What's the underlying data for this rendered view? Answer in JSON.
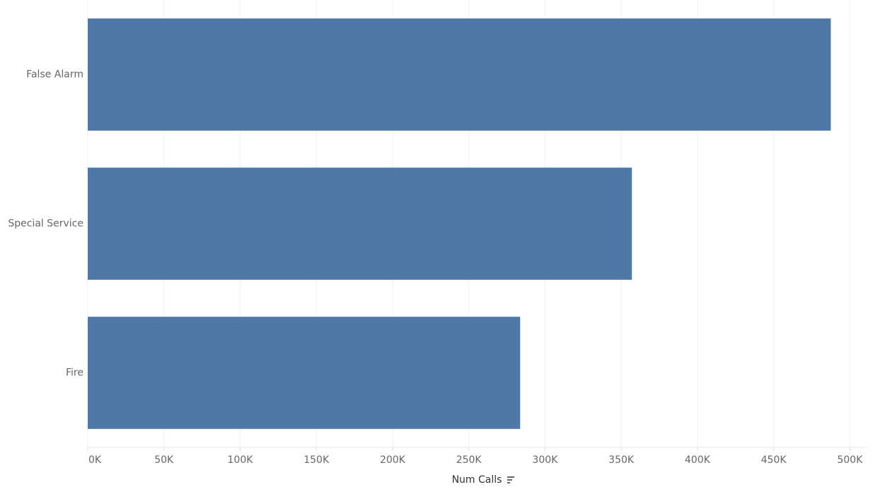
{
  "chart_data": {
    "type": "bar",
    "orientation": "horizontal",
    "x_label": "Num Calls",
    "categories": [
      "False Alarm",
      "Special Service",
      "Fire"
    ],
    "values": [
      487500,
      357000,
      283700
    ],
    "color": "#4e79a7",
    "xlim": [
      0,
      511000
    ],
    "xticks": [
      {
        "value": 0,
        "label": "0K"
      },
      {
        "value": 50000,
        "label": "50K"
      },
      {
        "value": 100000,
        "label": "100K"
      },
      {
        "value": 150000,
        "label": "150K"
      },
      {
        "value": 200000,
        "label": "200K"
      },
      {
        "value": 250000,
        "label": "250K"
      },
      {
        "value": 300000,
        "label": "300K"
      },
      {
        "value": 350000,
        "label": "350K"
      },
      {
        "value": 400000,
        "label": "400K"
      },
      {
        "value": 450000,
        "label": "450K"
      },
      {
        "value": 500000,
        "label": "500K"
      }
    ],
    "grid": true
  }
}
